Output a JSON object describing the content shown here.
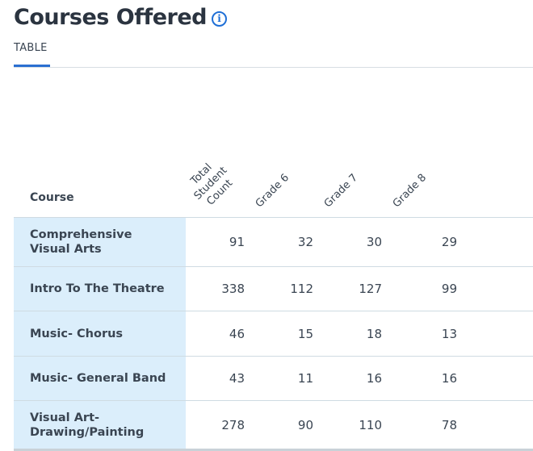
{
  "header": {
    "title": "Courses Offered",
    "info_icon": "info-icon"
  },
  "tabs": [
    {
      "label": "TABLE",
      "active": true
    }
  ],
  "table": {
    "columns": [
      "Course",
      "Total Student Count",
      "Grade 6",
      "Grade 7",
      "Grade 8"
    ],
    "rows": [
      {
        "course": "Comprehensive Visual Arts",
        "total": "91",
        "grade6": "32",
        "grade7": "30",
        "grade8": "29"
      },
      {
        "course": "Intro To The Theatre",
        "total": "338",
        "grade6": "112",
        "grade7": "127",
        "grade8": "99"
      },
      {
        "course": "Music- Chorus",
        "total": "46",
        "grade6": "15",
        "grade7": "18",
        "grade8": "13"
      },
      {
        "course": "Music- General Band",
        "total": "43",
        "grade6": "11",
        "grade7": "16",
        "grade8": "16"
      },
      {
        "course": "Visual Art- Drawing/Painting",
        "total": "278",
        "grade6": "90",
        "grade7": "110",
        "grade8": "78"
      }
    ]
  },
  "colors": {
    "accent": "#2b6fd1",
    "course_cell_bg": "#dbeefb",
    "border": "#cfdbe2"
  }
}
